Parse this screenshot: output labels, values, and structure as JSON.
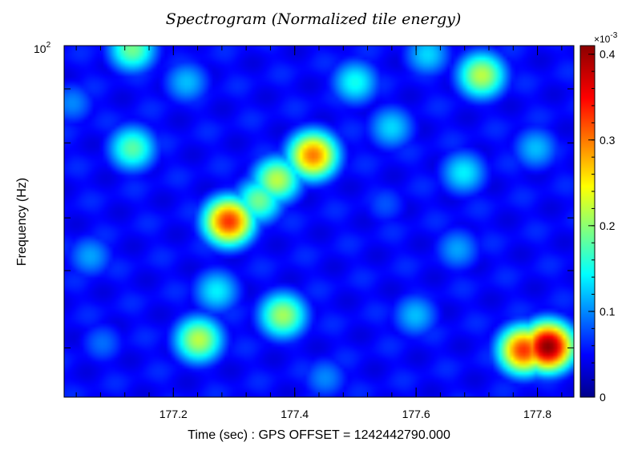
{
  "chart_data": {
    "type": "heatmap",
    "title": "Spectrogram (Normalized tile energy)",
    "xlabel": "Time (sec) : GPS OFFSET = 1242442790.000",
    "ylabel": "Frequency (Hz)",
    "xlim": [
      177.02,
      177.86
    ],
    "x_ticks": [
      177.2,
      177.4,
      177.6,
      177.8
    ],
    "x_tick_labels": [
      "177.2",
      "177.4",
      "177.6",
      "177.8"
    ],
    "y_scale": "log",
    "y_tick_label_base": "10",
    "y_tick_label_exponent": "2",
    "colorbar": {
      "multiplier_base": "×10",
      "multiplier_exponent": "-3",
      "range": [
        0,
        0.41
      ],
      "ticks": [
        0,
        0.1,
        0.2,
        0.3,
        0.4
      ],
      "tick_labels": [
        "0",
        "0.1",
        "0.2",
        "0.3",
        "0.4"
      ],
      "colormap": [
        "#00008b",
        "#0000ff",
        "#00ffff",
        "#ffff00",
        "#ff0000",
        "#8b0000"
      ]
    },
    "grid": false,
    "features": [
      {
        "t": 177.82,
        "f": 0.14,
        "energy": 0.41
      },
      {
        "t": 177.78,
        "f": 0.13,
        "energy": 0.33
      },
      {
        "t": 177.29,
        "f": 0.5,
        "energy": 0.33
      },
      {
        "t": 177.43,
        "f": 0.69,
        "energy": 0.3
      },
      {
        "t": 177.37,
        "f": 0.62,
        "energy": 0.22
      },
      {
        "t": 177.34,
        "f": 0.56,
        "energy": 0.19
      },
      {
        "t": 177.24,
        "f": 0.16,
        "energy": 0.22
      },
      {
        "t": 177.38,
        "f": 0.23,
        "energy": 0.21
      },
      {
        "t": 177.27,
        "f": 0.3,
        "energy": 0.14
      },
      {
        "t": 177.13,
        "f": 0.71,
        "energy": 0.18
      },
      {
        "t": 177.71,
        "f": 0.92,
        "energy": 0.22
      },
      {
        "t": 177.13,
        "f": 0.995,
        "energy": 0.19
      },
      {
        "t": 177.5,
        "f": 0.9,
        "energy": 0.15
      },
      {
        "t": 177.56,
        "f": 0.77,
        "energy": 0.13
      },
      {
        "t": 177.68,
        "f": 0.64,
        "energy": 0.14
      },
      {
        "t": 177.03,
        "f": 0.84,
        "energy": 0.1
      },
      {
        "t": 177.6,
        "f": 0.23,
        "energy": 0.12
      },
      {
        "t": 177.67,
        "f": 0.42,
        "energy": 0.11
      },
      {
        "t": 177.8,
        "f": 0.71,
        "energy": 0.12
      },
      {
        "t": 177.62,
        "f": 0.98,
        "energy": 0.13
      },
      {
        "t": 177.22,
        "f": 0.9,
        "energy": 0.12
      },
      {
        "t": 177.06,
        "f": 0.4,
        "energy": 0.11
      },
      {
        "t": 177.45,
        "f": 0.05,
        "energy": 0.1
      },
      {
        "t": 177.55,
        "f": 0.55,
        "energy": 0.08
      },
      {
        "t": 177.08,
        "f": 0.15,
        "energy": 0.09
      }
    ]
  }
}
